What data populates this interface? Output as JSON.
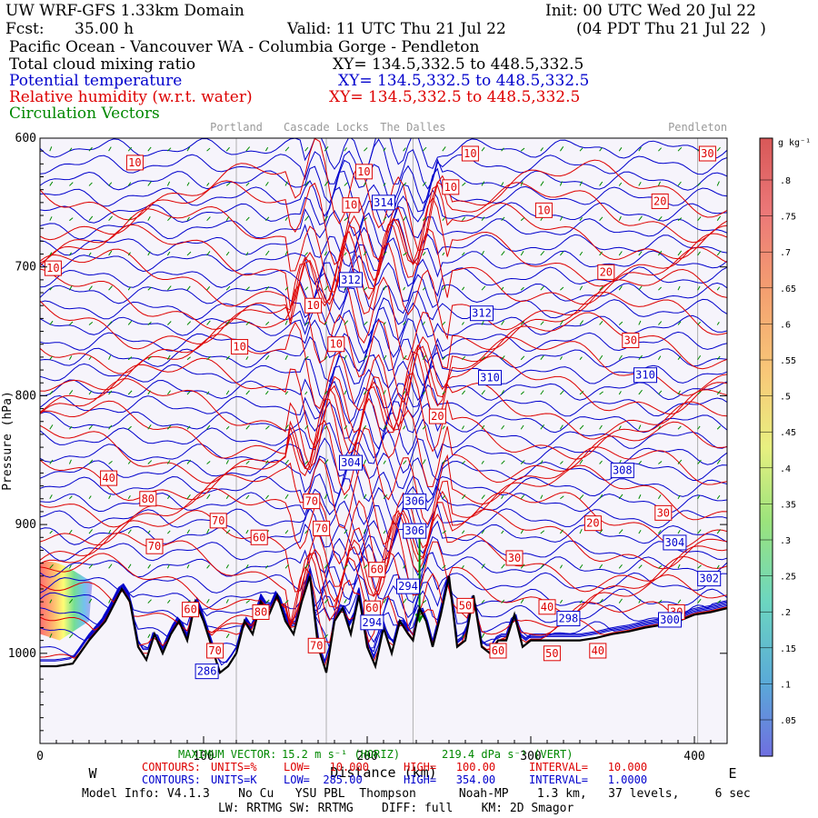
{
  "header": {
    "domain": "UW WRF-GFS 1.33km Domain",
    "init": "Init: 00 UTC Wed 20 Jul 22",
    "fcst_label": "Fcst:",
    "fcst_value": "35.00 h",
    "valid": "Valid: 11 UTC Thu 21 Jul 22",
    "valid_local": "(04 PDT Thu 21 Jul 22  )",
    "region": "Pacific Ocean - Vancouver WA - Columbia Gorge - Pendleton",
    "fields": [
      {
        "name": "Total cloud mixing ratio",
        "xy": "XY= 134.5,332.5 to 448.5,332.5",
        "color": "#000000"
      },
      {
        "name": "Potential temperature",
        "xy": "XY= 134.5,332.5 to 448.5,332.5",
        "color": "#0000cc"
      },
      {
        "name": "Relative humidity (w.r.t. water)",
        "xy": "XY= 134.5,332.5 to 448.5,332.5",
        "color": "#dd0000"
      },
      {
        "name": "Circulation Vectors",
        "xy": "",
        "color": "#008800"
      }
    ]
  },
  "chart_data": {
    "type": "cross-section",
    "title": "Vertical cross section: Pacific Ocean - Vancouver WA - Columbia Gorge - Pendleton",
    "xlabel": "Distance (km)",
    "ylabel": "Pressure (hPa)",
    "xlim": [
      0,
      420
    ],
    "ylim": [
      1070,
      600
    ],
    "x_ticks": [
      0,
      100,
      200,
      300,
      400
    ],
    "y_ticks": [
      600,
      700,
      800,
      900,
      1000
    ],
    "y_tick_labels": [
      "600",
      "700",
      "800",
      "900",
      "1000"
    ],
    "ylabel_visible": "Pressure (hPa)",
    "direction_west": "W",
    "direction_east": "E",
    "locations": [
      {
        "name": "Portland",
        "x": 120
      },
      {
        "name": "Cascade Locks",
        "x": 175
      },
      {
        "name": "The Dalles",
        "x": 228
      },
      {
        "name": "Pendleton",
        "x": 402
      }
    ],
    "colorbar": {
      "units": "g kg⁻¹",
      "labels": [
        ".05",
        ".1",
        ".15",
        ".2",
        ".25",
        ".3",
        ".35",
        ".4",
        ".45",
        ".5",
        ".55",
        ".6",
        ".65",
        ".7",
        ".75",
        ".8"
      ]
    },
    "theta_contours": {
      "units": "K",
      "low": 285.0,
      "high": 354.0,
      "interval": 1.0,
      "labels": [
        {
          "text": "314",
          "x": 210,
          "p": 650
        },
        {
          "text": "312",
          "x": 190,
          "p": 710
        },
        {
          "text": "312",
          "x": 270,
          "p": 736
        },
        {
          "text": "310",
          "x": 275,
          "p": 786
        },
        {
          "text": "310",
          "x": 370,
          "p": 784
        },
        {
          "text": "308",
          "x": 356,
          "p": 858
        },
        {
          "text": "304",
          "x": 190,
          "p": 852
        },
        {
          "text": "306",
          "x": 229,
          "p": 882
        },
        {
          "text": "306",
          "x": 229,
          "p": 905
        },
        {
          "text": "304",
          "x": 388,
          "p": 914
        },
        {
          "text": "302",
          "x": 409,
          "p": 942
        },
        {
          "text": "298",
          "x": 323,
          "p": 973
        },
        {
          "text": "300",
          "x": 385,
          "p": 974
        },
        {
          "text": "294",
          "x": 203,
          "p": 976
        },
        {
          "text": "294",
          "x": 225,
          "p": 948
        },
        {
          "text": "286",
          "x": 102,
          "p": 1014
        }
      ]
    },
    "rh_contours": {
      "units": "%",
      "low": 10.0,
      "high": 100.0,
      "interval": 10.0,
      "labels": [
        {
          "text": "10",
          "x": 58,
          "p": 619
        },
        {
          "text": "10",
          "x": 198,
          "p": 626
        },
        {
          "text": "10",
          "x": 263,
          "p": 612
        },
        {
          "text": "10",
          "x": 251,
          "p": 638
        },
        {
          "text": "10",
          "x": 190,
          "p": 652
        },
        {
          "text": "10",
          "x": 308,
          "p": 656
        },
        {
          "text": "10",
          "x": 8,
          "p": 701
        },
        {
          "text": "10",
          "x": 167,
          "p": 730
        },
        {
          "text": "10",
          "x": 181,
          "p": 760
        },
        {
          "text": "10",
          "x": 122,
          "p": 762
        },
        {
          "text": "20",
          "x": 379,
          "p": 649
        },
        {
          "text": "20",
          "x": 346,
          "p": 704
        },
        {
          "text": "30",
          "x": 408,
          "p": 612
        },
        {
          "text": "30",
          "x": 361,
          "p": 757
        },
        {
          "text": "20",
          "x": 243,
          "p": 816
        },
        {
          "text": "40",
          "x": 42,
          "p": 864
        },
        {
          "text": "80",
          "x": 66,
          "p": 880
        },
        {
          "text": "70",
          "x": 166,
          "p": 882
        },
        {
          "text": "70",
          "x": 109,
          "p": 897
        },
        {
          "text": "60",
          "x": 134,
          "p": 910
        },
        {
          "text": "70",
          "x": 70,
          "p": 917
        },
        {
          "text": "70",
          "x": 172,
          "p": 903
        },
        {
          "text": "30",
          "x": 381,
          "p": 891
        },
        {
          "text": "20",
          "x": 338,
          "p": 899
        },
        {
          "text": "30",
          "x": 290,
          "p": 926
        },
        {
          "text": "60",
          "x": 206,
          "p": 935
        },
        {
          "text": "60",
          "x": 92,
          "p": 966
        },
        {
          "text": "80",
          "x": 135,
          "p": 968
        },
        {
          "text": "60",
          "x": 203,
          "p": 965
        },
        {
          "text": "50",
          "x": 260,
          "p": 963
        },
        {
          "text": "40",
          "x": 310,
          "p": 964
        },
        {
          "text": "70",
          "x": 107,
          "p": 998
        },
        {
          "text": "70",
          "x": 169,
          "p": 994
        },
        {
          "text": "30",
          "x": 389,
          "p": 968
        },
        {
          "text": "60",
          "x": 280,
          "p": 998
        },
        {
          "text": "50",
          "x": 313,
          "p": 1000
        },
        {
          "text": "40",
          "x": 341,
          "p": 998
        }
      ]
    },
    "terrain": {
      "x": [
        0,
        10,
        20,
        30,
        40,
        50,
        55,
        60,
        65,
        70,
        75,
        80,
        85,
        90,
        95,
        100,
        105,
        110,
        115,
        120,
        125,
        130,
        135,
        140,
        145,
        150,
        155,
        160,
        165,
        170,
        175,
        180,
        185,
        190,
        195,
        200,
        205,
        210,
        215,
        220,
        225,
        228,
        232,
        236,
        240,
        245,
        250,
        255,
        260,
        265,
        270,
        275,
        280,
        285,
        290,
        295,
        300,
        310,
        320,
        330,
        340,
        350,
        360,
        370,
        380,
        390,
        400,
        410,
        420
      ],
      "p": [
        1010,
        1010,
        1008,
        990,
        975,
        950,
        960,
        995,
        1005,
        985,
        1000,
        985,
        975,
        990,
        960,
        975,
        995,
        1015,
        1010,
        1000,
        975,
        985,
        960,
        970,
        955,
        975,
        985,
        960,
        940,
        995,
        1015,
        975,
        965,
        985,
        955,
        995,
        1010,
        980,
        1000,
        975,
        985,
        990,
        965,
        975,
        995,
        970,
        940,
        995,
        990,
        955,
        995,
        1000,
        990,
        990,
        970,
        995,
        990,
        990,
        990,
        990,
        988,
        985,
        983,
        980,
        978,
        975,
        970,
        968,
        965
      ]
    },
    "vectors": {
      "maximum_vector_label": "MAXIMUM VECTOR:",
      "horiz": "15.2 m s⁻¹ (HORIZ)",
      "vert": "219.4 dPa s⁻¹ (VERT)"
    }
  },
  "footer": {
    "rh_line": {
      "contours": "CONTOURS:",
      "units": "UNITS=%",
      "low": "LOW=   10.000",
      "high": "HIGH=   100.00",
      "interval": "INTERVAL=   10.000"
    },
    "theta_line": {
      "contours": "CONTOURS:",
      "units": "UNITS=K",
      "low": "LOW=  285.00",
      "high": "HIGH=   354.00",
      "interval": "INTERVAL=   1.0000"
    },
    "model_info": "Model Info: V4.1.3    No Cu   YSU PBL  Thompson      Noah-MP    1.3 km,   37 levels,     6 sec",
    "physics": "LW: RRTMG SW: RRTMG    DIFF: full    KM: 2D Smagor"
  },
  "colors": {
    "theta": "#0000cc",
    "rh": "#dd0000",
    "vector": "#008800",
    "terrain": "#000000",
    "plot_bg": "#f6f4fb"
  }
}
